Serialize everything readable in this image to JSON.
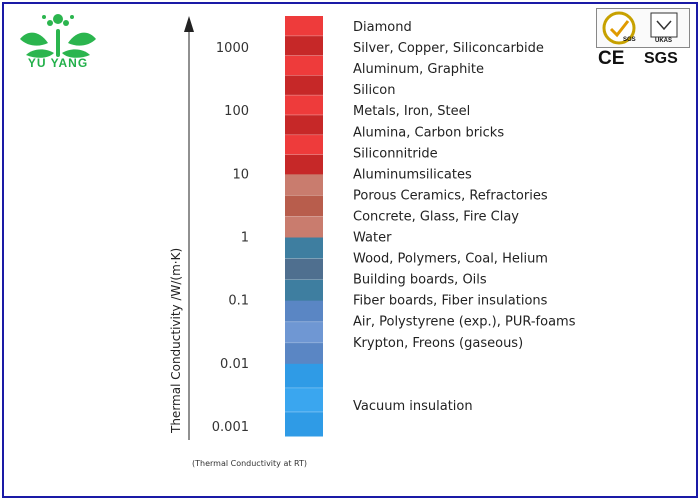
{
  "logo": {
    "text": "YU YANG",
    "icon": "yuyang-logo-icon",
    "color": "#22b04a"
  },
  "certifications": {
    "badge_text_sgs": "SGS",
    "badge_text_ukas": "UKAS",
    "marks": [
      "CE",
      "SGS"
    ]
  },
  "chart_data": {
    "type": "bar",
    "orientation": "vertical-scale",
    "ylabel": "Thermal Conductivity  /W/(m·K)",
    "footnote": "(Thermal Conductivity at RT)",
    "y_scale": "log",
    "ylim": [
      0.001,
      3000
    ],
    "y_ticks": [
      "1000",
      "100",
      "10",
      "1",
      "0.1",
      "0.01",
      "0.001"
    ],
    "y_tick_values": [
      1000,
      100,
      10,
      1,
      0.1,
      0.01,
      0.001
    ],
    "materials": [
      {
        "label": "Diamond",
        "value": 2000
      },
      {
        "label": "Silver, Copper, Siliconcarbide",
        "value": 400
      },
      {
        "label": "Aluminum, Graphite",
        "value": 200
      },
      {
        "label": "Silicon",
        "value": 100
      },
      {
        "label": "Metals, Iron, Steel",
        "value": 50
      },
      {
        "label": "Alumina, Carbon bricks",
        "value": 20
      },
      {
        "label": "Siliconnitride",
        "value": 10
      },
      {
        "label": "Aluminumsilicates",
        "value": 5
      },
      {
        "label": "Porous Ceramics, Refractories",
        "value": 2
      },
      {
        "label": "Concrete, Glass, Fire Clay",
        "value": 1
      },
      {
        "label": "Water",
        "value": 0.5
      },
      {
        "label": "Wood, Polymers, Coal, Helium",
        "value": 0.2
      },
      {
        "label": "Building boards, Oils",
        "value": 0.1
      },
      {
        "label": "Fiber boards, Fiber insulations",
        "value": 0.05
      },
      {
        "label": "Air, Polystyrene (exp.), PUR-foams",
        "value": 0.02
      },
      {
        "label": "Krypton, Freons (gaseous)",
        "value": 0.01
      },
      {
        "label": "Vacuum insulation",
        "value": 0.001
      }
    ],
    "color_bands": [
      {
        "from": 10,
        "to": 3000,
        "colors": [
          "#ee3b3b",
          "#c62828"
        ]
      },
      {
        "from": 1,
        "to": 10,
        "colors": [
          "#c97c6e",
          "#b85d4c"
        ]
      },
      {
        "from": 0.1,
        "to": 1,
        "colors": [
          "#3e7ea0",
          "#4f6f8f"
        ]
      },
      {
        "from": 0.01,
        "to": 0.1,
        "colors": [
          "#5a86c4",
          "#6f97d3"
        ]
      },
      {
        "from": 0.001,
        "to": 0.01,
        "colors": [
          "#2f9be6",
          "#3aa6ef"
        ]
      }
    ]
  }
}
